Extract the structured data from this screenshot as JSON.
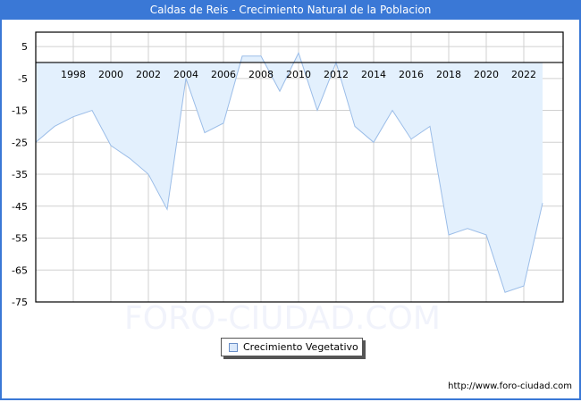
{
  "title": "Caldas de Reis - Crecimiento Natural de la Poblacion",
  "watermark": "FORO-CIUDAD.COM",
  "footer_url": "http://www.foro-ciudad.com",
  "legend": {
    "label": "Crecimiento Vegetativo"
  },
  "colors": {
    "header": "#3a78d6",
    "fill": "#e3f0fd",
    "line": "#9bbde8",
    "grid": "#d0d0d0"
  },
  "chart_data": {
    "type": "area",
    "title": "Caldas de Reis - Crecimiento Natural de la Poblacion",
    "xlabel": "",
    "ylabel": "",
    "x": [
      1996,
      1997,
      1998,
      1999,
      2000,
      2001,
      2002,
      2003,
      2004,
      2005,
      2006,
      2007,
      2008,
      2009,
      2010,
      2011,
      2012,
      2013,
      2014,
      2015,
      2016,
      2017,
      2018,
      2019,
      2020,
      2021,
      2022,
      2023
    ],
    "series": [
      {
        "name": "Crecimiento Vegetativo",
        "values": [
          -25,
          -20,
          -17,
          -15,
          -26,
          -30,
          -35,
          -46,
          -5,
          -22,
          -19,
          2,
          2,
          -9,
          3,
          -15,
          0,
          -20,
          -25,
          -15,
          -24,
          -20,
          -54,
          -52,
          -54,
          -72,
          -70,
          -44
        ]
      }
    ],
    "x_tick_labels": [
      "1998",
      "2000",
      "2002",
      "2004",
      "2006",
      "2008",
      "2010",
      "2012",
      "2014",
      "2016",
      "2018",
      "2020",
      "2022"
    ],
    "y_ticks": [
      5,
      -5,
      -15,
      -25,
      -35,
      -45,
      -55,
      -65,
      -75
    ],
    "ylim": [
      -75,
      9.5
    ],
    "xlim": [
      1996,
      2024
    ],
    "grid": true,
    "legend_position": "bottom-center"
  }
}
